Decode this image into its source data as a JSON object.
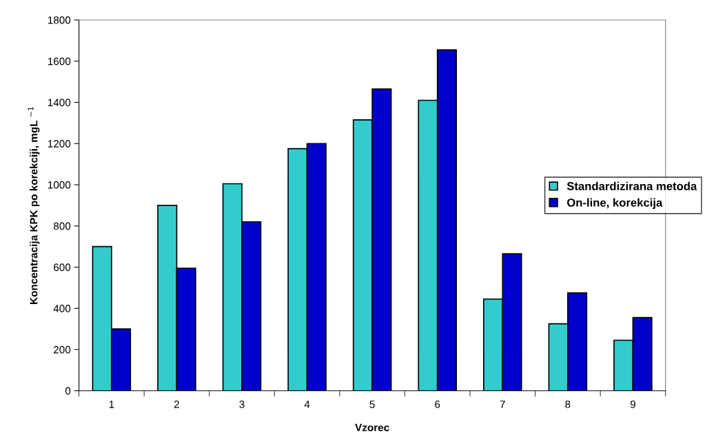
{
  "chart_data": {
    "type": "bar",
    "xlabel": "Vzorec",
    "ylabel": "Koncentracija KPK po korekciji, mgL $^{−1}$",
    "categories": [
      "1",
      "2",
      "3",
      "4",
      "5",
      "6",
      "7",
      "8",
      "9"
    ],
    "series": [
      {
        "name": "Standardizirana metoda",
        "color": "#33cccc",
        "values": [
          700,
          900,
          1005,
          1175,
          1315,
          1410,
          445,
          325,
          245
        ]
      },
      {
        "name": "On-line, korekcija",
        "color": "#0000cc",
        "values": [
          300,
          595,
          820,
          1200,
          1465,
          1655,
          665,
          475,
          355
        ]
      }
    ],
    "ylim": [
      0,
      1800
    ],
    "yticks": [
      0,
      200,
      400,
      600,
      800,
      1000,
      1200,
      1400,
      1600,
      1800
    ],
    "grid": false,
    "legend": "right"
  }
}
